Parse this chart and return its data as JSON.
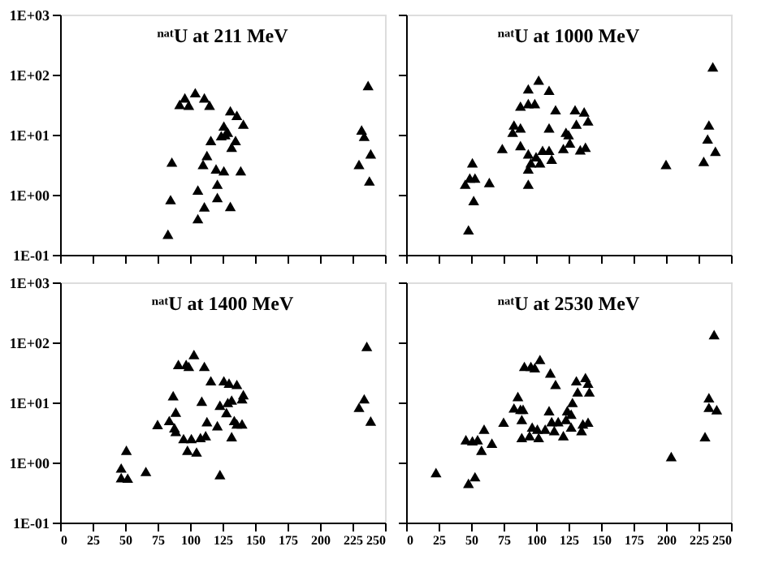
{
  "chart_data": [
    {
      "type": "scatter",
      "title": "ⁿᵃᵗU at 211 MeV",
      "marker": "triangle",
      "log": "y",
      "tick_labels": "y",
      "xlim": [
        0,
        250
      ],
      "ylim": [
        0.1,
        1000
      ],
      "xticks": [
        {
          "value": 0,
          "label": null
        },
        {
          "value": 25,
          "label": null
        },
        {
          "value": 50,
          "label": null
        },
        {
          "value": 75,
          "label": null
        },
        {
          "value": 100,
          "label": null
        },
        {
          "value": 125,
          "label": null
        },
        {
          "value": 150,
          "label": null
        },
        {
          "value": 175,
          "label": null
        },
        {
          "value": 200,
          "label": null
        },
        {
          "value": 225,
          "label": null
        },
        {
          "value": 250,
          "label": null
        }
      ],
      "yticks": [
        {
          "value": 0.1,
          "label": "1E-01"
        },
        {
          "value": 1,
          "label": "1E+00"
        },
        {
          "value": 10,
          "label": "1E+01"
        },
        {
          "value": 100,
          "label": "1E+02"
        },
        {
          "value": 1000,
          "label": "1E+03"
        }
      ],
      "series": [
        {
          "color": "#000000",
          "x": [
            83,
            85,
            86,
            92,
            96,
            99,
            104,
            111,
            115,
            106,
            106,
            111,
            110,
            113,
            116,
            121,
            121,
            120,
            126,
            131,
            124,
            126,
            129,
            131,
            136,
            135,
            132,
            139,
            141,
            127,
            232,
            234,
            230,
            237,
            239,
            238
          ],
          "values": [
            0.22,
            0.83,
            3.5,
            32,
            41,
            31,
            50,
            41,
            31,
            1.2,
            0.4,
            0.63,
            3.2,
            4.5,
            8,
            0.9,
            1.5,
            2.7,
            2.5,
            0.64,
            9.6,
            14,
            11,
            25,
            21,
            8,
            6.2,
            2.5,
            15,
            10,
            12,
            9.4,
            3.2,
            66,
            4.8,
            1.7
          ]
        }
      ]
    },
    {
      "type": "scatter",
      "title": "ⁿᵃᵗU at 1000 MeV",
      "marker": "triangle",
      "log": "y",
      "tick_labels": false,
      "xlim": [
        0,
        250
      ],
      "ylim": [
        0.1,
        1000
      ],
      "xticks": [
        {
          "value": 0,
          "label": null
        },
        {
          "value": 25,
          "label": null
        },
        {
          "value": 50,
          "label": null
        },
        {
          "value": 75,
          "label": null
        },
        {
          "value": 100,
          "label": null
        },
        {
          "value": 125,
          "label": null
        },
        {
          "value": 150,
          "label": null
        },
        {
          "value": 175,
          "label": null
        },
        {
          "value": 200,
          "label": null
        },
        {
          "value": 225,
          "label": null
        },
        {
          "value": 250,
          "label": null
        }
      ],
      "yticks": [
        {
          "value": 0.1,
          "label": null
        },
        {
          "value": 1,
          "label": null
        },
        {
          "value": 10,
          "label": null
        },
        {
          "value": 100,
          "label": null
        },
        {
          "value": 1000,
          "label": null
        }
      ],
      "series": [
        {
          "color": "#000000",
          "x": [
            48,
            45.5,
            51,
            49,
            53,
            52,
            64,
            74,
            83,
            82,
            88,
            88,
            88,
            94,
            94,
            99,
            102,
            110,
            115,
            110,
            94,
            94,
            94,
            96,
            100,
            103,
            105,
            110,
            112,
            121,
            123,
            125,
            126,
            130,
            131,
            137,
            140,
            134,
            138,
            200,
            229,
            232,
            233,
            236,
            238
          ],
          "values": [
            0.26,
            1.5,
            3.4,
            1.9,
            1.9,
            0.8,
            1.6,
            5.9,
            14.5,
            11,
            13,
            6.6,
            30,
            58,
            33,
            33,
            81,
            55,
            26,
            13,
            4.8,
            1.5,
            2.7,
            3.4,
            4.3,
            3.4,
            5.5,
            5.5,
            3.9,
            5.9,
            11,
            10,
            7.3,
            26,
            15,
            24,
            17,
            5.6,
            6.2,
            3.2,
            3.6,
            8.5,
            14.5,
            135,
            5.3
          ]
        }
      ]
    },
    {
      "type": "scatter",
      "title": "ⁿᵃᵗU at 1400 MeV",
      "marker": "triangle",
      "log": "y",
      "xlim": [
        0,
        250
      ],
      "ylim": [
        0.1,
        1000
      ],
      "xticks": [
        0,
        25,
        50,
        75,
        100,
        125,
        150,
        175,
        200,
        225,
        250
      ],
      "yticks": [
        {
          "value": 0.1,
          "label": "1E-01"
        },
        {
          "value": 1,
          "label": "1E+00"
        },
        {
          "value": 10,
          "label": "1E+01"
        },
        {
          "value": 100,
          "label": "1E+02"
        },
        {
          "value": 1000,
          "label": "1E+03"
        }
      ],
      "series": [
        {
          "color": "#000000",
          "x": [
            47,
            47,
            52,
            51,
            66,
            75,
            84,
            87,
            88,
            89,
            89,
            91,
            97,
            99,
            95,
            98,
            101,
            103,
            105,
            108,
            111,
            109,
            112,
            113,
            116,
            121,
            123,
            123,
            126,
            128,
            129,
            130,
            132,
            132,
            134,
            136,
            136,
            140,
            140,
            141,
            230,
            234,
            236,
            239
          ],
          "values": [
            0.56,
            0.81,
            0.55,
            1.6,
            0.71,
            4.3,
            5,
            13,
            3.8,
            6.9,
            3.3,
            43,
            43,
            40,
            2.5,
            1.6,
            2.5,
            63,
            1.5,
            2.6,
            40,
            10.5,
            2.8,
            4.8,
            23,
            4.1,
            9,
            0.63,
            23,
            6.8,
            10,
            21,
            2.7,
            11,
            5,
            20,
            4.4,
            11.5,
            4.4,
            13.5,
            8.3,
            11.5,
            86,
            4.9
          ]
        }
      ]
    },
    {
      "type": "scatter",
      "title": "ⁿᵃᵗU at 2530 MeV",
      "marker": "triangle",
      "log": "y",
      "tick_labels": "x",
      "xlim": [
        0,
        250
      ],
      "ylim": [
        0.1,
        1000
      ],
      "xticks": [
        0,
        25,
        50,
        75,
        100,
        125,
        150,
        175,
        200,
        225,
        250
      ],
      "yticks": [
        {
          "value": 0.1,
          "label": null
        },
        {
          "value": 1,
          "label": null
        },
        {
          "value": 10,
          "label": null
        },
        {
          "value": 100,
          "label": null
        },
        {
          "value": 1000,
          "label": null
        }
      ],
      "series": [
        {
          "color": "#000000",
          "x": [
            23,
            48,
            53,
            46,
            51,
            55,
            58,
            60,
            66,
            75,
            83,
            86,
            88,
            89,
            90,
            89,
            91,
            96,
            99,
            103,
            111,
            115,
            95,
            97,
            101,
            102,
            107,
            110,
            112,
            114,
            117,
            121,
            123,
            124,
            127,
            127,
            128,
            131,
            132,
            135,
            136,
            138,
            140,
            140,
            141,
            204,
            230,
            233,
            233,
            237,
            239
          ],
          "values": [
            0.68,
            0.45,
            0.58,
            2.4,
            2.3,
            2.4,
            1.6,
            3.6,
            2.1,
            4.7,
            8.1,
            12.6,
            7.7,
            5.2,
            7.7,
            2.6,
            40,
            40,
            38,
            52,
            31,
            20,
            2.8,
            3.9,
            3.6,
            2.6,
            3.6,
            7.3,
            4.8,
            3.4,
            4.8,
            2.8,
            5.2,
            7.3,
            6.4,
            3.9,
            10,
            23,
            15,
            3.4,
            4.4,
            26,
            4.7,
            21,
            15,
            1.26,
            2.7,
            12,
            8.3,
            135,
            7.6
          ]
        }
      ]
    }
  ]
}
